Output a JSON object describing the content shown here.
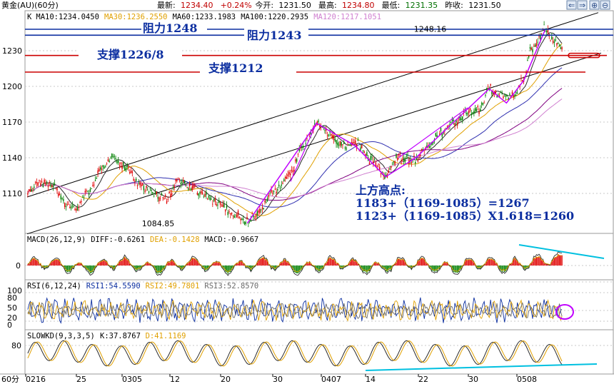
{
  "header": {
    "symbol": "黄金(AU)",
    "period": "(60分)",
    "quote": [
      {
        "label": "最新:",
        "value": "1234.40",
        "color": "#c00000"
      },
      {
        "label": "",
        "value": "+0.24%",
        "color": "#c00000"
      },
      {
        "label": "今开:",
        "value": "1231.50",
        "color": "#000000"
      },
      {
        "label": "最高:",
        "value": "1234.80",
        "color": "#c00000"
      },
      {
        "label": "最低:",
        "value": "1231.35",
        "color": "#007000"
      },
      {
        "label": "昨收:",
        "value": "1231.50",
        "color": "#000000"
      }
    ]
  },
  "colors": {
    "bg": "#ffffff",
    "up": "#e00000",
    "down": "#008000",
    "ma10": "#2a2a2a",
    "ma30": "#e0a000",
    "ma60": "#3030b0",
    "ma100": "#800080",
    "ma120": "#d080d0",
    "channel": "#000000",
    "wave": "#c000ff",
    "resistance": "#0b2ea0",
    "support": "#cc0000",
    "annot": "#00c0e0",
    "rsi1": "#0b2ea0",
    "rsi2": "#e0a000",
    "rsi3": "#6a6a6a"
  },
  "main_panel": {
    "label": "K",
    "ma": [
      {
        "name": "MA10:",
        "value": "1234.0450",
        "color": "#000000"
      },
      {
        "name": "MA30:",
        "value": "1236.2550",
        "color": "#e0a000"
      },
      {
        "name": "MA60:",
        "value": "1233.1983",
        "color": "#000000"
      },
      {
        "name": "MA100:",
        "value": "1220.2935",
        "color": "#000000"
      },
      {
        "name": "MA120:",
        "value": "1217.1051",
        "color": "#d080d0"
      }
    ],
    "y_ticks": [
      "1230",
      "1200",
      "1170",
      "1140",
      "1110"
    ],
    "levels": [
      {
        "text": "阻力1248",
        "price": 1248,
        "kind": "resistance"
      },
      {
        "text": "阻力1243",
        "price": 1243,
        "kind": "resistance"
      },
      {
        "text": "支撑1226/8",
        "price": 1226,
        "kind": "support"
      },
      {
        "text": "支撑1212",
        "price": 1212,
        "kind": "support"
      }
    ],
    "price_labels": [
      {
        "text": "1248.16",
        "x": 49.5,
        "y": 1248.16
      },
      {
        "text": "1084.85",
        "x": 18,
        "y": 1084.85
      }
    ],
    "annotation_lines": [
      "上方高点:",
      "1183+（1169-1085）=1267",
      "1123+（1169-1085）X1.618=1260"
    ]
  },
  "macd_panel": {
    "label": "MACD(26,12,9)",
    "values": [
      {
        "name": "DIFF:",
        "value": "-0.6261",
        "color": "#000000"
      },
      {
        "name": "DEA:",
        "value": "-0.1428",
        "color": "#e0a000"
      },
      {
        "name": "MACD:",
        "value": "-0.9667",
        "color": "#000000"
      }
    ],
    "y_ticks": [
      "0"
    ]
  },
  "rsi_panel": {
    "label": "RSI(6,12,24)",
    "values": [
      {
        "name": "RSI1:",
        "value": "54.5590",
        "color": "#0b2ea0"
      },
      {
        "name": "RSI2:",
        "value": "49.7801",
        "color": "#e0a000"
      },
      {
        "name": "RSI3:",
        "value": "52.8570",
        "color": "#6a6a6a"
      }
    ],
    "y_ticks": [
      "100",
      "80",
      "50",
      "20",
      "0"
    ]
  },
  "kd_panel": {
    "label": "SLOWKD(9,3,3,5)",
    "values": [
      {
        "name": "K:",
        "value": "37.8767",
        "color": "#000000"
      },
      {
        "name": "D:",
        "value": "41.1169",
        "color": "#e0a000"
      }
    ],
    "y_ticks": [
      "80"
    ]
  },
  "x_axis": {
    "period_label": "60分",
    "ticks": [
      "0216",
      "25",
      "0305",
      "12",
      "20",
      "30",
      "0407",
      "14",
      "22",
      "30",
      "0508"
    ]
  },
  "chart_data": {
    "type": "candlestick",
    "title": "黄金(AU)(60分)",
    "x_ticks": [
      "0216",
      "25",
      "0305",
      "12",
      "20",
      "30",
      "0407",
      "14",
      "22",
      "30",
      "0508"
    ],
    "ylim": [
      1075,
      1262
    ],
    "y_ticks": [
      1110,
      1140,
      1170,
      1200,
      1230
    ],
    "anchors": [
      [
        0,
        1112
      ],
      [
        1.5,
        1120
      ],
      [
        3,
        1116
      ],
      [
        4.5,
        1100
      ],
      [
        5.5,
        1097
      ],
      [
        7,
        1112
      ],
      [
        8.5,
        1130
      ],
      [
        10,
        1140
      ],
      [
        11.5,
        1132
      ],
      [
        13,
        1118
      ],
      [
        14.5,
        1110
      ],
      [
        16,
        1105
      ],
      [
        17.5,
        1120
      ],
      [
        19,
        1116
      ],
      [
        20.5,
        1108
      ],
      [
        22,
        1102
      ],
      [
        24,
        1092
      ],
      [
        25.5,
        1087
      ],
      [
        27,
        1096
      ],
      [
        28.5,
        1112
      ],
      [
        30.5,
        1128
      ],
      [
        32,
        1150
      ],
      [
        33.5,
        1168
      ],
      [
        35,
        1160
      ],
      [
        36.5,
        1150
      ],
      [
        38,
        1152
      ],
      [
        40,
        1138
      ],
      [
        41.5,
        1126
      ],
      [
        43,
        1140
      ],
      [
        45,
        1138
      ],
      [
        46.5,
        1150
      ],
      [
        48,
        1162
      ],
      [
        49.5,
        1170
      ],
      [
        51,
        1178
      ],
      [
        52.5,
        1180
      ],
      [
        53.5,
        1198
      ],
      [
        55,
        1192
      ],
      [
        56.5,
        1194
      ],
      [
        57.5,
        1206
      ],
      [
        58.5,
        1232
      ],
      [
        60,
        1248
      ],
      [
        61,
        1238
      ],
      [
        62,
        1234
      ]
    ],
    "x_span": 62,
    "levels": [
      1248,
      1243,
      1226,
      1212
    ],
    "low_point": 1084.85,
    "high_point": 1248.16,
    "series": [
      {
        "name": "MA10",
        "last": 1234.045
      },
      {
        "name": "MA30",
        "last": 1236.255
      },
      {
        "name": "MA60",
        "last": 1233.1983
      },
      {
        "name": "MA100",
        "last": 1220.2935
      },
      {
        "name": "MA120",
        "last": 1217.1051
      }
    ],
    "macd": {
      "diff": -0.6261,
      "dea": -0.1428,
      "macd": -0.9667
    },
    "rsi": {
      "rsi1": 54.559,
      "rsi2": 49.7801,
      "rsi3": 52.857
    },
    "slowkd": {
      "k": 37.8767,
      "d": 41.1169
    }
  }
}
